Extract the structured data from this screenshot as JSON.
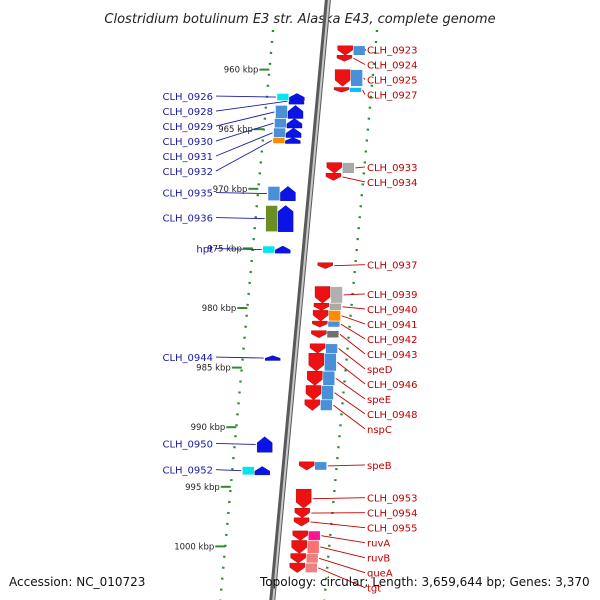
{
  "title": "Clostridium botulinum E3 str. Alaska E43, complete genome",
  "footer": {
    "accession": "Accession: NC_010723",
    "stats": "Topology: circular; Length: 3,659,644 bp; Genes: 3,370"
  },
  "colors": {
    "forward": "#0a14e6",
    "reverse": "#ee1111",
    "left_label": "#1a1aa6",
    "right_label": "#c00000",
    "backbone": "#909090",
    "tick": "#2e8b2e"
  },
  "scale_ticks": [
    {
      "label": "960 kbp",
      "kbp": 960
    },
    {
      "label": "965 kbp",
      "kbp": 965
    },
    {
      "label": "970 kbp",
      "kbp": 970
    },
    {
      "label": "975 kbp",
      "kbp": 975
    },
    {
      "label": "980 kbp",
      "kbp": 980
    },
    {
      "label": "985 kbp",
      "kbp": 985
    },
    {
      "label": "990 kbp",
      "kbp": 990
    },
    {
      "label": "995 kbp",
      "kbp": 995
    },
    {
      "label": "1000 kbp",
      "kbp": 1000
    }
  ],
  "forward_genes": [
    {
      "name": "CLH_0926",
      "start": 962.0,
      "end": 962.6,
      "cog": "#00e5ee"
    },
    {
      "name": "CLH_0928",
      "start": 962.4,
      "end": 962.9,
      "cog": ""
    },
    {
      "name": "CLH_0929",
      "start": 963.0,
      "end": 964.1,
      "cog": "#4a90d9"
    },
    {
      "name": "CLH_0930",
      "start": 964.1,
      "end": 964.9,
      "cog": "#4a90d9"
    },
    {
      "name": "CLH_0931",
      "start": 964.9,
      "end": 965.7,
      "cog": "#4a90d9"
    },
    {
      "name": "CLH_0932",
      "start": 965.7,
      "end": 966.2,
      "cog": "#ff8c00"
    },
    {
      "name": "CLH_0935",
      "start": 969.8,
      "end": 971.0,
      "cog": "#4a90d9"
    },
    {
      "name": "CLH_0936",
      "start": 971.4,
      "end": 973.6,
      "cog": "#6b8e23"
    },
    {
      "name": "hpt",
      "start": 974.8,
      "end": 975.4,
      "cog": "#00e5ee"
    },
    {
      "name": "CLH_0944",
      "start": 984.0,
      "end": 984.4,
      "cog": ""
    },
    {
      "name": "CLH_0950",
      "start": 990.8,
      "end": 992.1,
      "cog": ""
    },
    {
      "name": "CLH_0952",
      "start": 993.3,
      "end": 994.0,
      "cog": "#00e5ee"
    }
  ],
  "reverse_genes": [
    {
      "name": "CLH_0923",
      "start": 958.0,
      "end": 958.8,
      "cog": "#4a90d9"
    },
    {
      "name": "CLH_0924",
      "start": 958.8,
      "end": 959.3,
      "cog": ""
    },
    {
      "name": "CLH_0925",
      "start": 960.0,
      "end": 961.4,
      "cog": "#4a90d9"
    },
    {
      "name": "CLH_0927",
      "start": 961.5,
      "end": 961.9,
      "cog": "#00bfff"
    },
    {
      "name": "CLH_0933",
      "start": 967.8,
      "end": 968.7,
      "cog": "#a9a9a9"
    },
    {
      "name": "CLH_0934",
      "start": 968.7,
      "end": 969.3,
      "cog": ""
    },
    {
      "name": "CLH_0937",
      "start": 976.2,
      "end": 976.7,
      "cog": ""
    },
    {
      "name": "CLH_0939",
      "start": 978.2,
      "end": 979.6,
      "cog": "#b0b0b0"
    },
    {
      "name": "CLH_0940",
      "start": 979.6,
      "end": 980.2,
      "cog": "#a9a9a9"
    },
    {
      "name": "CLH_0941",
      "start": 980.2,
      "end": 981.1,
      "cog": "#ff8c00"
    },
    {
      "name": "CLH_0942",
      "start": 981.1,
      "end": 981.6,
      "cog": "#4a90d9"
    },
    {
      "name": "CLH_0943",
      "start": 981.9,
      "end": 982.5,
      "cog": "#707070"
    },
    {
      "name": "speD",
      "start": 983.0,
      "end": 983.8,
      "cog": "#4a90d9"
    },
    {
      "name": "CLH_0946",
      "start": 983.8,
      "end": 985.3,
      "cog": "#4a90d9"
    },
    {
      "name": "speE",
      "start": 985.3,
      "end": 986.5,
      "cog": "#4a90d9"
    },
    {
      "name": "CLH_0948",
      "start": 986.5,
      "end": 987.7,
      "cog": "#4a90d9"
    },
    {
      "name": "nspC",
      "start": 987.7,
      "end": 988.6,
      "cog": "#4a90d9"
    },
    {
      "name": "speB",
      "start": 992.9,
      "end": 993.6,
      "cog": "#4a90d9"
    },
    {
      "name": "CLH_0953",
      "start": 995.2,
      "end": 996.8,
      "cog": ""
    },
    {
      "name": "CLH_0954",
      "start": 996.8,
      "end": 997.6,
      "cog": ""
    },
    {
      "name": "CLH_0955",
      "start": 997.6,
      "end": 998.3,
      "cog": ""
    },
    {
      "name": "ruvA",
      "start": 998.7,
      "end": 999.5,
      "cog": "#ff1493"
    },
    {
      "name": "ruvB",
      "start": 999.5,
      "end": 1000.6,
      "cog": "#ff7070"
    },
    {
      "name": "queA",
      "start": 1000.6,
      "end": 1001.4,
      "cog": "#f08080"
    },
    {
      "name": "tgt",
      "start": 1001.4,
      "end": 1002.2,
      "cog": "#f08080"
    }
  ]
}
